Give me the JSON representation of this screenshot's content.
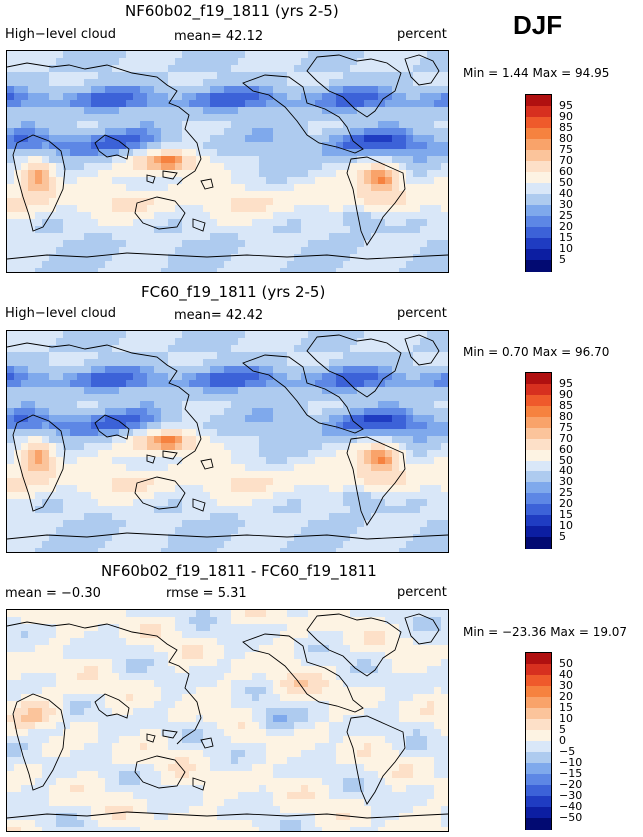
{
  "season": "DJF",
  "panels": [
    {
      "title": "NF60b02_f19_1811 (yrs 2-5)",
      "left_label": "High−level cloud",
      "mid_label": "mean=  42.12",
      "right_label": "percent",
      "stats": "Min =    1.44 Max =  94.95",
      "colorbar_labels": [
        "95",
        "90",
        "85",
        "80",
        "75",
        "70",
        "60",
        "50",
        "40",
        "30",
        "25",
        "20",
        "15",
        "10",
        "5"
      ],
      "colorbar_colors": [
        "#b01010",
        "#d7301f",
        "#ef5a2b",
        "#f6823f",
        "#f9a36a",
        "#fbc49b",
        "#fde0c8",
        "#fdf3e3",
        "#d9e7f8",
        "#aecbef",
        "#7fa9ec",
        "#5d87e5",
        "#3c62d8",
        "#1f3cc2",
        "#0c1ea2",
        "#020a72"
      ],
      "field": "abs"
    },
    {
      "title": "FC60_f19_1811 (yrs 2-5)",
      "left_label": "High−level cloud",
      "mid_label": "mean=  42.42",
      "right_label": "percent",
      "stats": "Min =    0.70 Max =  96.70",
      "colorbar_labels": [
        "95",
        "90",
        "85",
        "80",
        "75",
        "70",
        "60",
        "50",
        "40",
        "30",
        "25",
        "20",
        "15",
        "10",
        "5"
      ],
      "colorbar_colors": [
        "#b01010",
        "#d7301f",
        "#ef5a2b",
        "#f6823f",
        "#f9a36a",
        "#fbc49b",
        "#fde0c8",
        "#fdf3e3",
        "#d9e7f8",
        "#aecbef",
        "#7fa9ec",
        "#5d87e5",
        "#3c62d8",
        "#1f3cc2",
        "#0c1ea2",
        "#020a72"
      ],
      "field": "abs"
    },
    {
      "title": "NF60b02_f19_1811 - FC60_f19_1811",
      "left_label": "mean =   −0.30",
      "mid_label": "rmse =   5.31",
      "right_label": "percent",
      "stats": "Min = −23.36 Max =  19.07",
      "colorbar_labels": [
        "50",
        "40",
        "30",
        "20",
        "15",
        "10",
        "5",
        "0",
        "−5",
        "−10",
        "−15",
        "−20",
        "−30",
        "−40",
        "−50"
      ],
      "colorbar_colors": [
        "#b01010",
        "#d7301f",
        "#ef5a2b",
        "#f6823f",
        "#f9a36a",
        "#fbc49b",
        "#fde0c8",
        "#fdf3e3",
        "#d9e7f8",
        "#aecbef",
        "#7fa9ec",
        "#5d87e5",
        "#3c62d8",
        "#1f3cc2",
        "#0c1ea2",
        "#020a72"
      ],
      "field": "diff"
    }
  ]
}
